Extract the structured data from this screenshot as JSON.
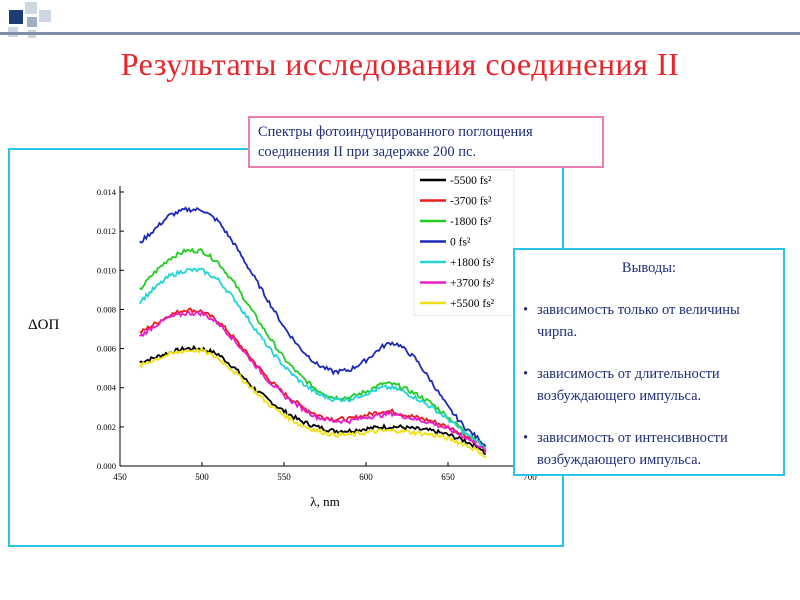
{
  "slide": {
    "title": "Результаты исследования соединения II",
    "caption_line1": "Спектры фотоиндуцированного поглощения",
    "caption_line2": "соединения II при задержке 200 пс.",
    "conclusions": {
      "heading": "Выводы:",
      "items": [
        "зависимость только от величины чирпа.",
        "зависимость от длительности возбуждающего импульса.",
        "зависимость от интенсивности возбуждающего импульса."
      ]
    },
    "colors": {
      "title": "#e8242c",
      "frame": "#29c4e8",
      "caption_border": "#e87fb0",
      "text": "#1f2d7a"
    }
  },
  "chart_data": {
    "type": "line",
    "xlabel": "λ, nm",
    "ylabel": "ΔOП",
    "xlim": [
      450,
      700
    ],
    "ylim": [
      0,
      0.014
    ],
    "xticks": [
      "450",
      "500",
      "550",
      "600",
      "650",
      "700"
    ],
    "yticks": [
      "0.000",
      "0.002",
      "0.004",
      "0.006",
      "0.008",
      "0.010",
      "0.012",
      "0.014"
    ],
    "legend_position": "top-right",
    "x": [
      462,
      470,
      480,
      490,
      500,
      510,
      520,
      530,
      540,
      550,
      560,
      570,
      580,
      590,
      600,
      610,
      615,
      620,
      630,
      640,
      650,
      660,
      670,
      673
    ],
    "series": [
      {
        "name": "-5500 fs²",
        "color": "#000000",
        "values": [
          0.0053,
          0.0055,
          0.0058,
          0.006,
          0.006,
          0.0057,
          0.005,
          0.0041,
          0.0034,
          0.0028,
          0.0023,
          0.002,
          0.0018,
          0.0018,
          0.0019,
          0.002,
          0.002,
          0.002,
          0.0019,
          0.0018,
          0.0016,
          0.0013,
          0.0009,
          0.0006
        ]
      },
      {
        "name": "-3700 fs²",
        "color": "#e81c1c",
        "values": [
          0.0068,
          0.0072,
          0.0077,
          0.008,
          0.0079,
          0.0074,
          0.0065,
          0.0055,
          0.0045,
          0.0037,
          0.0031,
          0.0026,
          0.0024,
          0.0024,
          0.0026,
          0.0028,
          0.0028,
          0.0027,
          0.0025,
          0.0023,
          0.002,
          0.0016,
          0.0011,
          0.0007
        ]
      },
      {
        "name": "-1800 fs²",
        "color": "#22cc22",
        "values": [
          0.009,
          0.0098,
          0.0106,
          0.011,
          0.011,
          0.0104,
          0.0093,
          0.008,
          0.0067,
          0.0055,
          0.0046,
          0.0039,
          0.0035,
          0.0035,
          0.0038,
          0.0042,
          0.0042,
          0.0041,
          0.0037,
          0.0032,
          0.0025,
          0.0018,
          0.0012,
          0.0008
        ]
      },
      {
        "name": "0 fs²",
        "color": "#1c2ab8",
        "values": [
          0.0114,
          0.012,
          0.0128,
          0.0131,
          0.0131,
          0.0125,
          0.0113,
          0.0099,
          0.0085,
          0.0071,
          0.006,
          0.0052,
          0.0048,
          0.0049,
          0.0054,
          0.0061,
          0.0063,
          0.0062,
          0.0055,
          0.0043,
          0.003,
          0.002,
          0.0013,
          0.001
        ]
      },
      {
        "name": "+1800 fs²",
        "color": "#22d4d4",
        "values": [
          0.0084,
          0.009,
          0.0097,
          0.01,
          0.01,
          0.0095,
          0.0085,
          0.0073,
          0.0061,
          0.0051,
          0.0043,
          0.0037,
          0.0034,
          0.0034,
          0.0037,
          0.004,
          0.004,
          0.0039,
          0.0035,
          0.003,
          0.0024,
          0.0017,
          0.0011,
          0.0008
        ]
      },
      {
        "name": "+3700 fs²",
        "color": "#e81cc8",
        "values": [
          0.0066,
          0.0071,
          0.0076,
          0.0078,
          0.0078,
          0.0073,
          0.0064,
          0.0054,
          0.0044,
          0.0036,
          0.003,
          0.0025,
          0.0023,
          0.0023,
          0.0025,
          0.0026,
          0.0027,
          0.0026,
          0.0024,
          0.0022,
          0.0019,
          0.0015,
          0.001,
          0.0007
        ]
      },
      {
        "name": "+5500 fs²",
        "color": "#f0e010",
        "values": [
          0.0051,
          0.0054,
          0.0057,
          0.0059,
          0.0059,
          0.0055,
          0.0048,
          0.004,
          0.0032,
          0.0026,
          0.0021,
          0.0018,
          0.0016,
          0.0016,
          0.0017,
          0.0018,
          0.0018,
          0.0018,
          0.0017,
          0.0016,
          0.0014,
          0.0011,
          0.0007,
          0.0004
        ]
      }
    ]
  }
}
